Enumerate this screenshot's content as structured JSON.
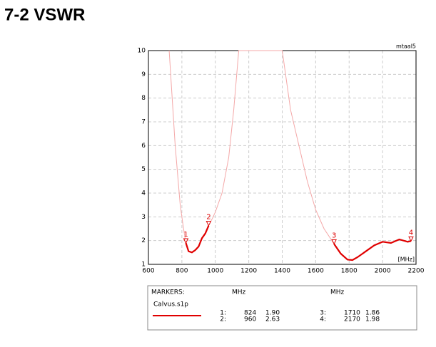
{
  "page_title": "7-2   VSWR",
  "chart_data": {
    "type": "line",
    "corner_label": "mtaal5",
    "x_unit": "[MHz]",
    "x": [
      724,
      760,
      790,
      810,
      824,
      840,
      860,
      880,
      900,
      920,
      940,
      960,
      980,
      1000,
      1040,
      1080,
      1110,
      1140,
      1400,
      1420,
      1450,
      1500,
      1550,
      1600,
      1650,
      1710,
      1750,
      1790,
      1820,
      1850,
      1900,
      1950,
      2000,
      2050,
      2100,
      2150,
      2170
    ],
    "series": [
      {
        "name": "Calvus.s1p",
        "color": "#f4a8a8",
        "values": [
          10,
          6,
          3.5,
          2.5,
          1.9,
          1.55,
          1.5,
          1.6,
          1.75,
          2.1,
          2.3,
          2.63,
          2.9,
          3.2,
          4,
          5.5,
          7.5,
          10,
          10,
          9,
          7.5,
          6,
          4.5,
          3.3,
          2.5,
          1.86,
          1.45,
          1.2,
          1.18,
          1.3,
          1.55,
          1.8,
          1.95,
          1.9,
          2.05,
          1.95,
          1.98
        ]
      },
      {
        "color": "#e00000",
        "values": [
          null,
          null,
          null,
          null,
          1.9,
          1.55,
          1.5,
          1.6,
          1.75,
          2.1,
          2.3,
          2.63,
          null,
          null,
          null,
          null,
          null,
          null,
          null,
          null,
          null,
          null,
          null,
          null,
          null,
          1.86,
          1.45,
          1.2,
          1.18,
          1.3,
          1.55,
          1.8,
          1.95,
          1.9,
          2.05,
          1.95,
          1.98
        ]
      }
    ],
    "markers": [
      {
        "name": "1",
        "x": 824,
        "y": 1.9
      },
      {
        "name": "2",
        "x": 960,
        "y": 2.63
      },
      {
        "name": "3",
        "x": 1710,
        "y": 1.86
      },
      {
        "name": "4",
        "x": 2170,
        "y": 1.98
      }
    ],
    "xlim": [
      600,
      2200
    ],
    "xticks": [
      600,
      800,
      1000,
      1200,
      1400,
      1600,
      1800,
      2000,
      2200
    ],
    "ylim": [
      1,
      10
    ],
    "yticks": [
      1,
      2,
      3,
      4,
      5,
      6,
      7,
      8,
      9,
      10
    ],
    "grid": true
  },
  "marker_table": {
    "header": "MARKERS:",
    "units": [
      "MHz",
      "MHz"
    ],
    "file": "Calvus.s1p",
    "entries": [
      [
        "1:",
        "824",
        "1.90"
      ],
      [
        "2:",
        "960",
        "2.63"
      ],
      [
        "3:",
        "1710",
        "1.86"
      ],
      [
        "4:",
        "2170",
        "1.98"
      ]
    ]
  }
}
